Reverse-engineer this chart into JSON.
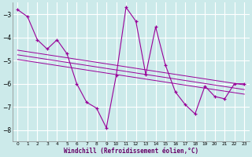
{
  "xlabel": "Windchill (Refroidissement éolien,°C)",
  "bg_color": "#cceaea",
  "line_color": "#990099",
  "grid_color": "#aadddd",
  "xlim": [
    -0.5,
    23.5
  ],
  "ylim": [
    -8.5,
    -2.5
  ],
  "yticks": [
    -8,
    -7,
    -6,
    -5,
    -4,
    -3
  ],
  "xticks": [
    0,
    1,
    2,
    3,
    4,
    5,
    6,
    7,
    8,
    9,
    10,
    11,
    12,
    13,
    14,
    15,
    16,
    17,
    18,
    19,
    20,
    21,
    22,
    23
  ],
  "main_x": [
    0,
    1,
    2,
    3,
    4,
    5,
    6,
    7,
    8,
    9,
    10,
    11,
    12,
    13,
    14,
    15,
    16,
    17,
    18,
    19,
    20,
    21,
    22,
    23
  ],
  "main_y": [
    -2.8,
    -3.1,
    -4.1,
    -4.5,
    -4.1,
    -4.7,
    -6.0,
    -6.8,
    -7.05,
    -7.9,
    -5.65,
    -2.7,
    -3.3,
    -5.6,
    -3.55,
    -5.2,
    -6.35,
    -6.9,
    -7.3,
    -6.1,
    -6.55,
    -6.65,
    -6.0,
    -6.0
  ],
  "trend_lines": [
    [
      -4.55,
      -6.05
    ],
    [
      -4.75,
      -6.25
    ],
    [
      -4.95,
      -6.45
    ]
  ]
}
